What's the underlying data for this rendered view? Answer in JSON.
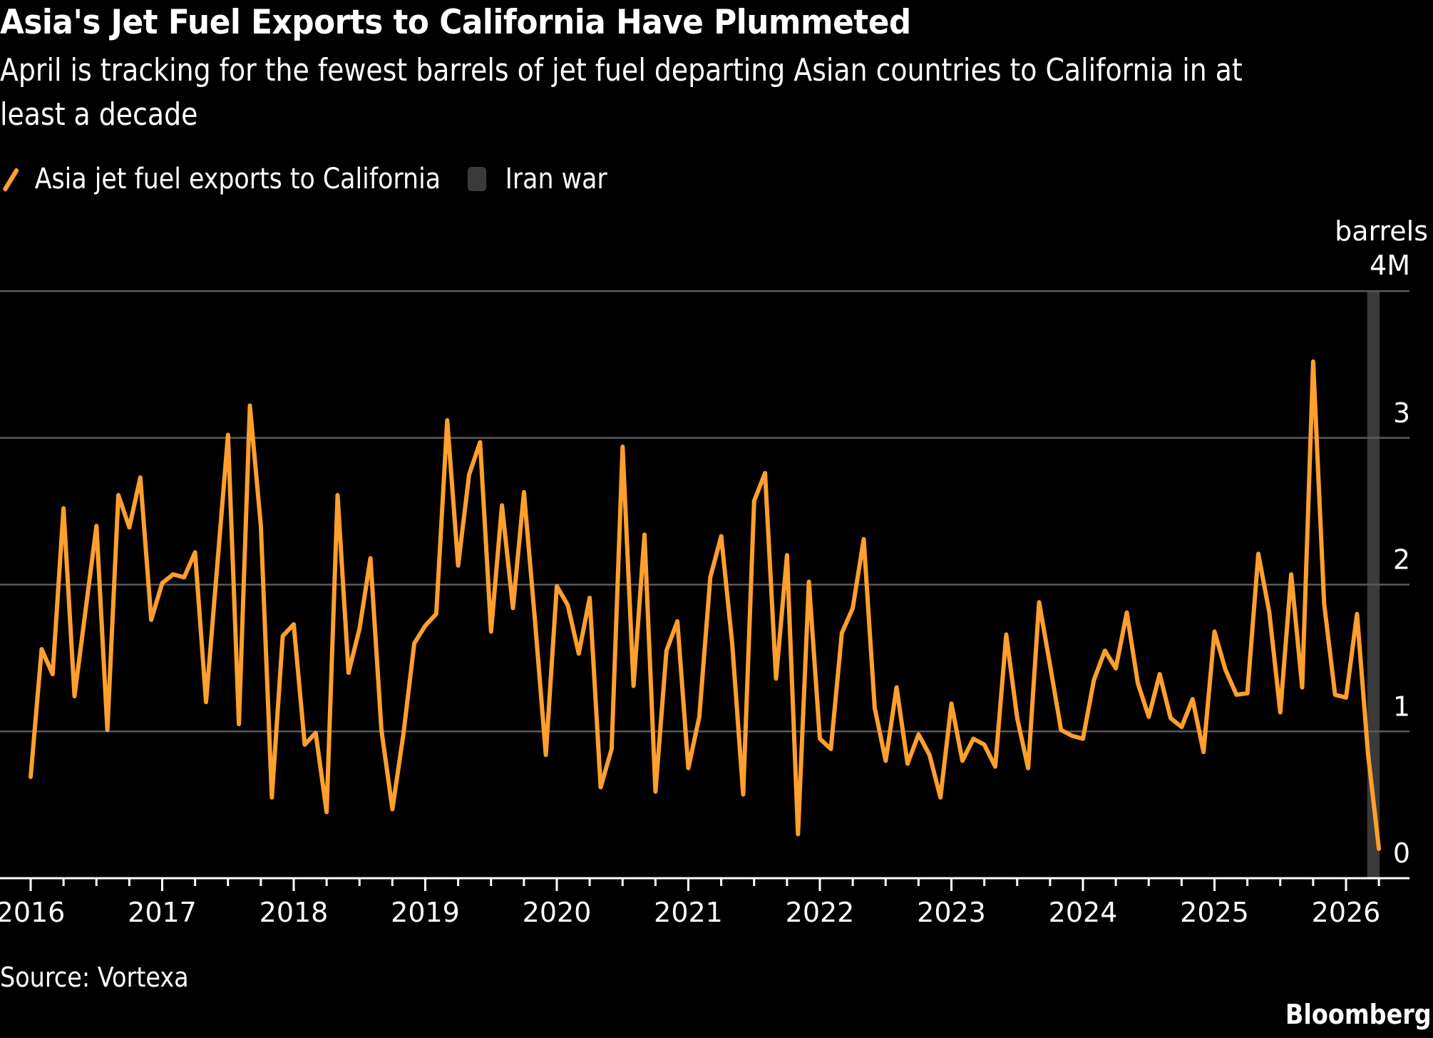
{
  "header": {
    "title": "Asia's Jet Fuel Exports to California Have Plummeted",
    "subtitle": "April is tracking for the fewest barrels of jet fuel departing Asian countries to California in at least a decade"
  },
  "legend": {
    "items": [
      {
        "label": "Asia jet fuel exports to California",
        "kind": "line",
        "color": "#FF9F2E"
      },
      {
        "label": "Iran war",
        "kind": "band",
        "color": "#3A3A3A"
      }
    ]
  },
  "footer": {
    "source": "Source: Vortexa",
    "brand": "Bloomberg"
  },
  "chart_data": {
    "type": "line",
    "title": "Asia's Jet Fuel Exports to California Have Plummeted",
    "subtitle": "April is tracking for the fewest barrels of jet fuel departing Asian countries to California in at least a decade",
    "xlabel": "",
    "ylabel": "barrels",
    "y_unit_label": "barrels",
    "ylim": [
      0,
      4
    ],
    "y_ticks": [
      0,
      1,
      2,
      3,
      4
    ],
    "y_tick_labels": [
      "0",
      "1",
      "2",
      "3",
      "4M"
    ],
    "y_axis_position": "right",
    "grid": true,
    "legend_position": "top-left",
    "x_start": "2016-01",
    "x_frequency": "monthly",
    "x_tick_labels": [
      "2016",
      "2017",
      "2018",
      "2019",
      "2020",
      "2021",
      "2022",
      "2023",
      "2024",
      "2025",
      "2026"
    ],
    "x_range_months": [
      0,
      123
    ],
    "shaded_regions": [
      {
        "label": "Iran war",
        "start_month_index": 122,
        "end_month_index": 123,
        "color": "#3A3A3A"
      }
    ],
    "series": [
      {
        "name": "Asia jet fuel exports to California",
        "unit": "million barrels",
        "color": "#FF9F2E",
        "values": [
          0.69,
          1.56,
          1.39,
          2.52,
          1.24,
          1.82,
          2.4,
          1.01,
          2.61,
          2.39,
          2.73,
          1.76,
          2.01,
          2.07,
          2.05,
          2.22,
          1.2,
          2.11,
          3.02,
          1.05,
          3.22,
          2.4,
          0.55,
          1.65,
          1.73,
          0.91,
          0.99,
          0.45,
          2.61,
          1.4,
          1.7,
          2.18,
          1.01,
          0.47,
          0.98,
          1.6,
          1.72,
          1.8,
          3.12,
          2.13,
          2.75,
          2.97,
          1.68,
          2.54,
          1.84,
          2.63,
          1.76,
          0.84,
          1.99,
          1.86,
          1.53,
          1.91,
          0.62,
          0.88,
          2.94,
          1.31,
          2.34,
          0.59,
          1.55,
          1.75,
          0.75,
          1.1,
          2.05,
          2.33,
          1.6,
          0.57,
          2.57,
          2.76,
          1.36,
          2.2,
          0.3,
          2.02,
          0.95,
          0.88,
          1.67,
          1.84,
          2.31,
          1.16,
          0.8,
          1.3,
          0.78,
          0.98,
          0.84,
          0.55,
          1.19,
          0.8,
          0.95,
          0.91,
          0.76,
          1.66,
          1.09,
          0.75,
          1.88,
          1.45,
          1.01,
          0.97,
          0.95,
          1.35,
          1.55,
          1.43,
          1.81,
          1.33,
          1.1,
          1.39,
          1.09,
          1.03,
          1.22,
          0.86,
          1.68,
          1.42,
          1.25,
          1.26,
          2.21,
          1.81,
          1.13,
          2.07,
          1.3,
          3.52,
          1.87,
          1.25,
          1.23,
          1.8,
          0.85,
          0.2
        ]
      }
    ]
  }
}
